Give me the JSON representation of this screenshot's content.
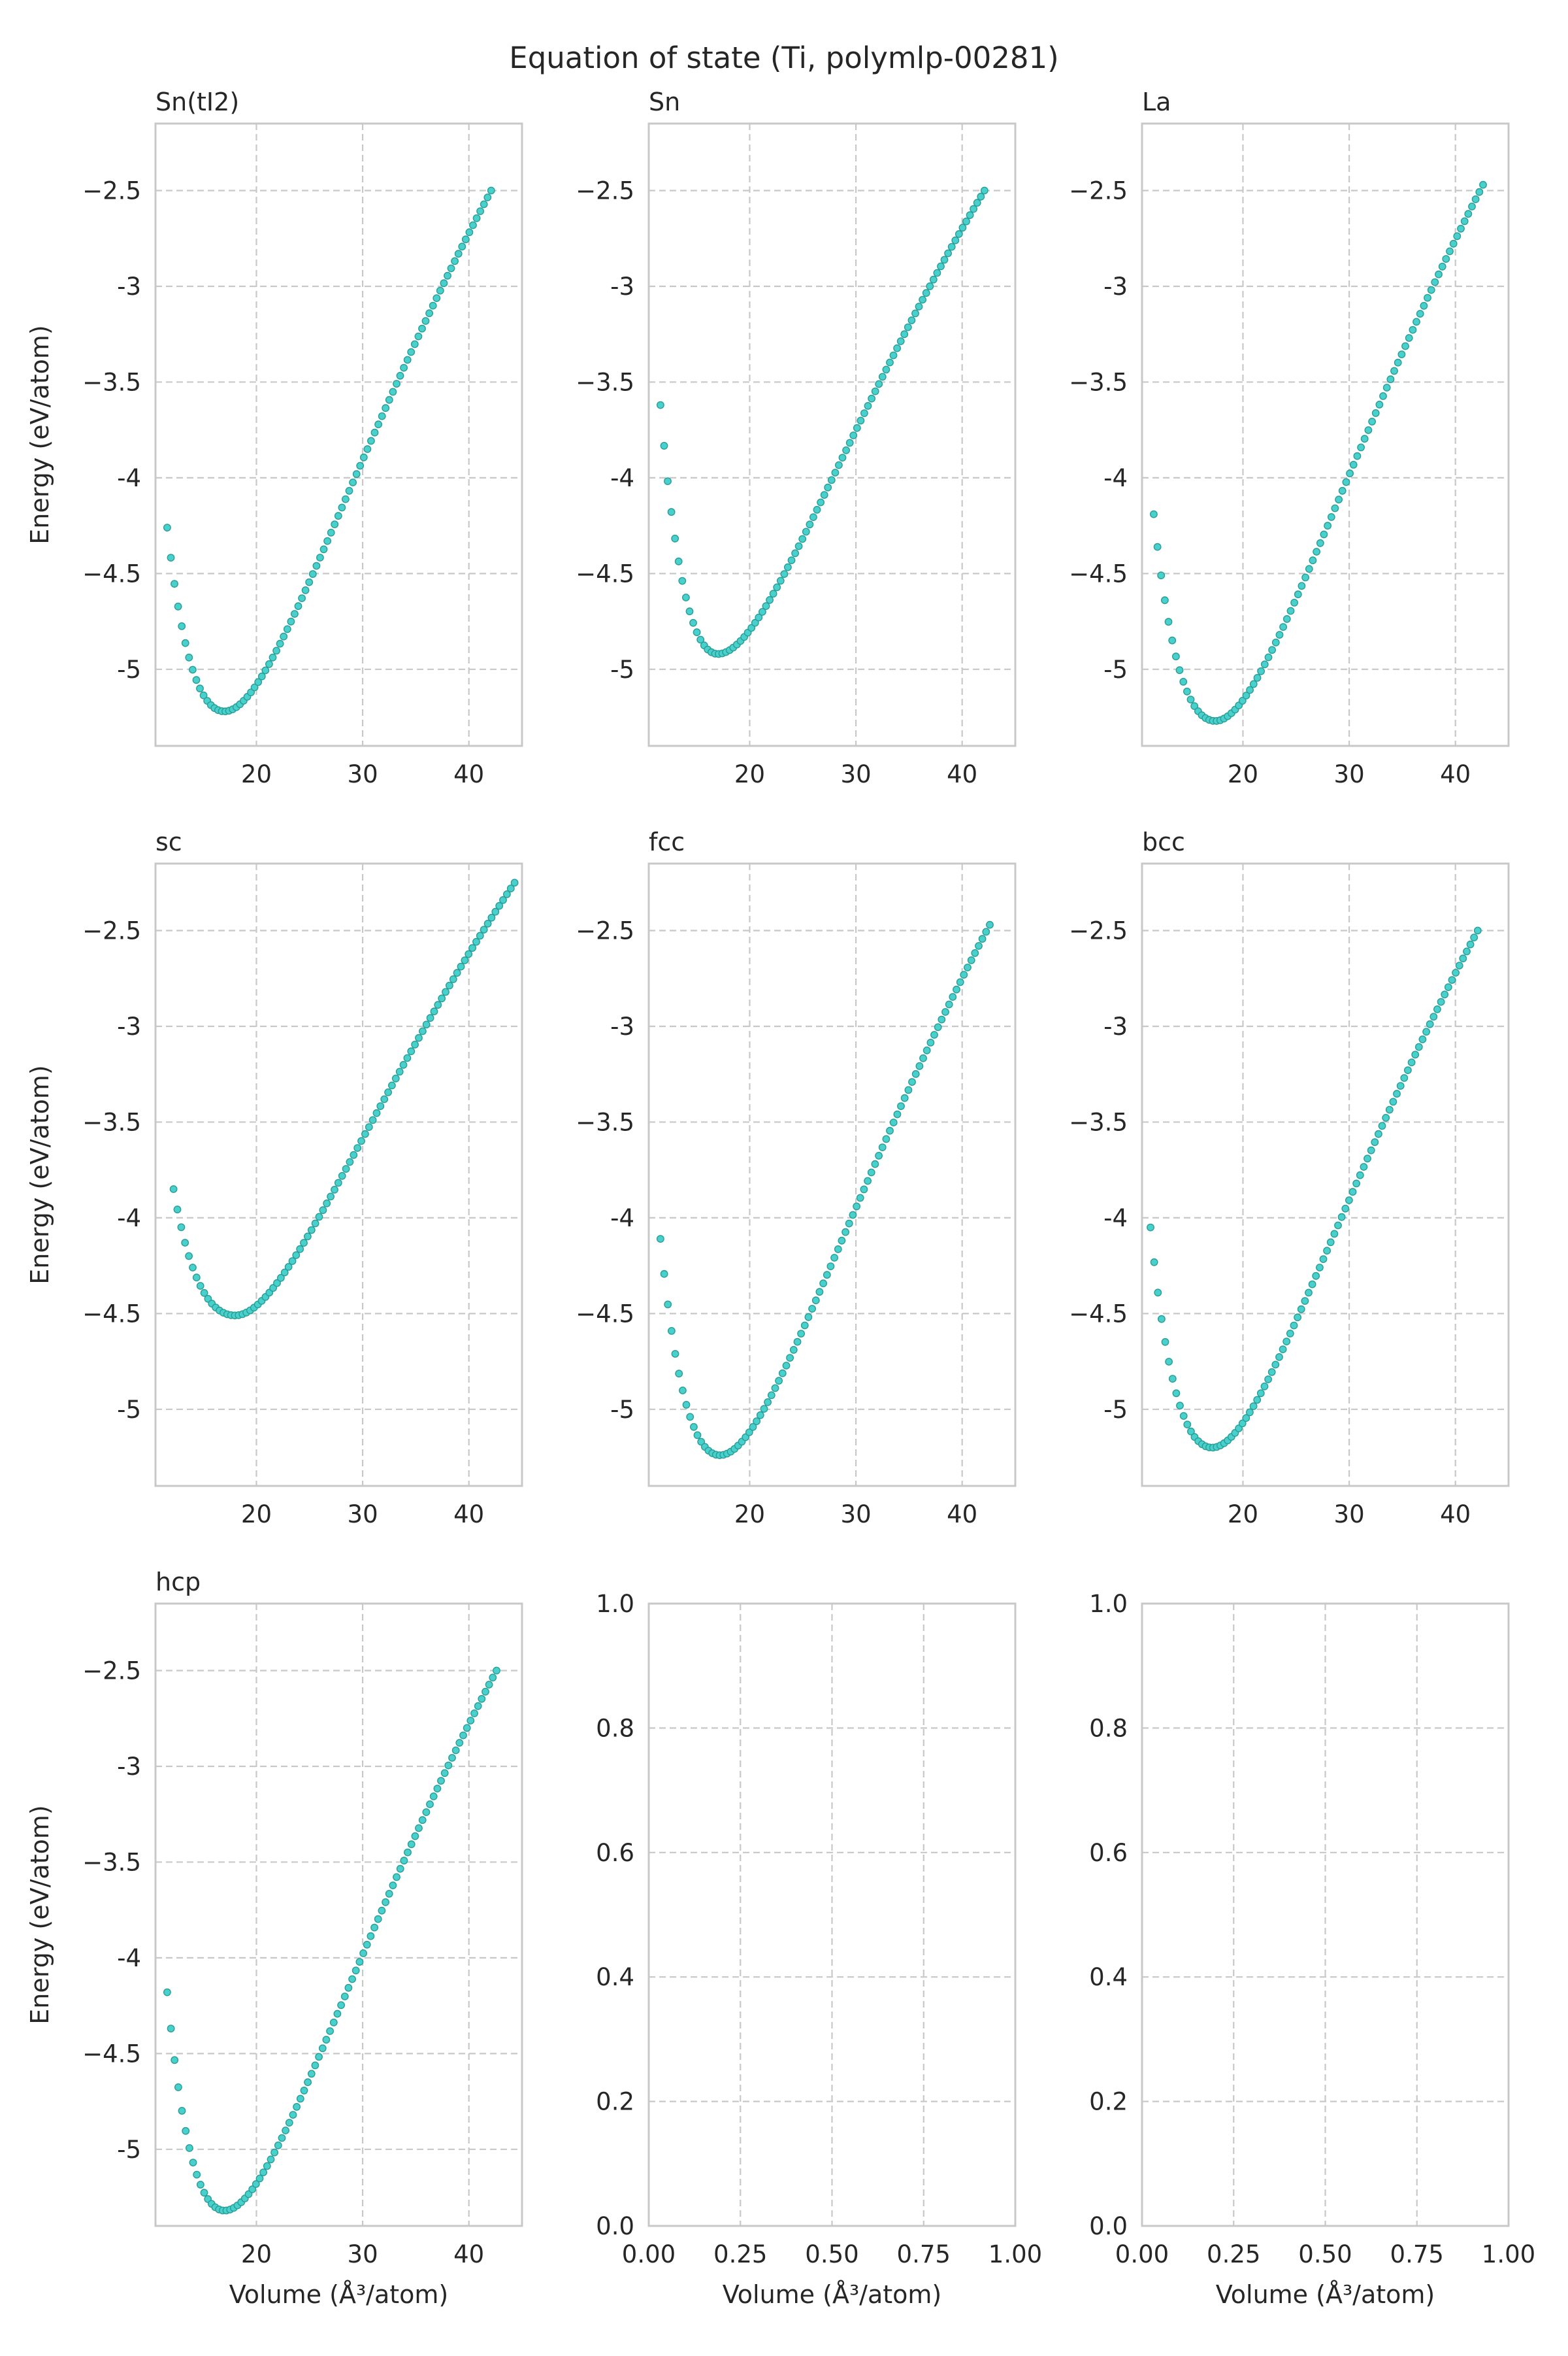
{
  "figure": {
    "title": "Equation of state (Ti, polymlp-00281)"
  },
  "style": {
    "point_color": "#48d1cc",
    "point_edge_color": "#2a9d96",
    "grid_color": "#c8c8c8",
    "spine_color": "#c8c8c8",
    "text_color": "#262626"
  },
  "chart_data": [
    {
      "type": "scatter",
      "title": "Sn(tI2)",
      "xlabel": "",
      "ylabel": "Energy (eV/atom)",
      "xlim": [
        10.5,
        45.0
      ],
      "ylim": [
        -5.4,
        -2.15
      ],
      "xticks": [
        20,
        30,
        40
      ],
      "yticks": [
        -5.0,
        -4.5,
        -4.0,
        -3.5,
        -3.0,
        -2.5
      ],
      "grid": true,
      "eos": {
        "v_min": 11.6,
        "v_max": 42.1,
        "n": 90,
        "v0": 17.0,
        "e0": -5.22,
        "e_first": -4.26,
        "e_last": -2.5
      }
    },
    {
      "type": "scatter",
      "title": "Sn",
      "xlabel": "",
      "ylabel": "",
      "xlim": [
        10.5,
        45.0
      ],
      "ylim": [
        -5.4,
        -2.15
      ],
      "xticks": [
        20,
        30,
        40
      ],
      "yticks": [
        -5.0,
        -4.5,
        -4.0,
        -3.5,
        -3.0,
        -2.5
      ],
      "grid": true,
      "eos": {
        "v_min": 11.6,
        "v_max": 42.1,
        "n": 90,
        "v0": 17.0,
        "e0": -4.92,
        "e_first": -3.62,
        "e_last": -2.5
      }
    },
    {
      "type": "scatter",
      "title": "La",
      "xlabel": "",
      "ylabel": "",
      "xlim": [
        10.5,
        45.0
      ],
      "ylim": [
        -5.4,
        -2.15
      ],
      "xticks": [
        20,
        30,
        40
      ],
      "yticks": [
        -5.0,
        -4.5,
        -4.0,
        -3.5,
        -3.0,
        -2.5
      ],
      "grid": true,
      "eos": {
        "v_min": 11.6,
        "v_max": 42.6,
        "n": 90,
        "v0": 17.4,
        "e0": -5.27,
        "e_first": -4.19,
        "e_last": -2.47
      }
    },
    {
      "type": "scatter",
      "title": "sc",
      "xlabel": "",
      "ylabel": "Energy (eV/atom)",
      "xlim": [
        10.5,
        45.0
      ],
      "ylim": [
        -5.4,
        -2.15
      ],
      "xticks": [
        20,
        30,
        40
      ],
      "yticks": [
        -5.0,
        -4.5,
        -4.0,
        -3.5,
        -3.0,
        -2.5
      ],
      "grid": true,
      "eos": {
        "v_min": 12.2,
        "v_max": 44.3,
        "n": 90,
        "v0": 18.0,
        "e0": -4.51,
        "e_first": -3.85,
        "e_last": -2.25
      }
    },
    {
      "type": "scatter",
      "title": "fcc",
      "xlabel": "",
      "ylabel": "",
      "xlim": [
        10.5,
        45.0
      ],
      "ylim": [
        -5.4,
        -2.15
      ],
      "xticks": [
        20,
        30,
        40
      ],
      "yticks": [
        -5.0,
        -4.5,
        -4.0,
        -3.5,
        -3.0,
        -2.5
      ],
      "grid": true,
      "eos": {
        "v_min": 11.6,
        "v_max": 42.6,
        "n": 90,
        "v0": 17.2,
        "e0": -5.24,
        "e_first": -4.11,
        "e_last": -2.47
      }
    },
    {
      "type": "scatter",
      "title": "bcc",
      "xlabel": "",
      "ylabel": "",
      "xlim": [
        10.5,
        45.0
      ],
      "ylim": [
        -5.4,
        -2.15
      ],
      "xticks": [
        20,
        30,
        40
      ],
      "yticks": [
        -5.0,
        -4.5,
        -4.0,
        -3.5,
        -3.0,
        -2.5
      ],
      "grid": true,
      "eos": {
        "v_min": 11.3,
        "v_max": 42.1,
        "n": 90,
        "v0": 17.1,
        "e0": -5.2,
        "e_first": -4.05,
        "e_last": -2.5
      }
    },
    {
      "type": "scatter",
      "title": "hcp",
      "xlabel": "Volume (Å³/atom)",
      "ylabel": "Energy (eV/atom)",
      "xlim": [
        10.5,
        45.0
      ],
      "ylim": [
        -5.4,
        -2.15
      ],
      "xticks": [
        20,
        30,
        40
      ],
      "yticks": [
        -5.0,
        -4.5,
        -4.0,
        -3.5,
        -3.0,
        -2.5
      ],
      "grid": true,
      "eos": {
        "v_min": 11.6,
        "v_max": 42.6,
        "n": 90,
        "v0": 17.0,
        "e0": -5.32,
        "e_first": -4.18,
        "e_last": -2.5
      }
    },
    {
      "type": "scatter",
      "title": "",
      "xlabel": "Volume (Å³/atom)",
      "ylabel": "",
      "xlim": [
        0,
        1
      ],
      "ylim": [
        0,
        1
      ],
      "xticks": [
        0.0,
        0.25,
        0.5,
        0.75,
        1.0
      ],
      "yticks": [
        0.0,
        0.2,
        0.4,
        0.6,
        0.8,
        1.0
      ],
      "xtick_labels": [
        "0.00",
        "0.25",
        "0.50",
        "0.75",
        "1.00"
      ],
      "ytick_labels": [
        "0.0",
        "0.2",
        "0.4",
        "0.6",
        "0.8",
        "1.0"
      ],
      "grid": true,
      "empty": true
    },
    {
      "type": "scatter",
      "title": "",
      "xlabel": "Volume (Å³/atom)",
      "ylabel": "",
      "xlim": [
        0,
        1
      ],
      "ylim": [
        0,
        1
      ],
      "xticks": [
        0.0,
        0.25,
        0.5,
        0.75,
        1.0
      ],
      "yticks": [
        0.0,
        0.2,
        0.4,
        0.6,
        0.8,
        1.0
      ],
      "xtick_labels": [
        "0.00",
        "0.25",
        "0.50",
        "0.75",
        "1.00"
      ],
      "ytick_labels": [
        "0.0",
        "0.2",
        "0.4",
        "0.6",
        "0.8",
        "1.0"
      ],
      "grid": true,
      "empty": true
    }
  ]
}
